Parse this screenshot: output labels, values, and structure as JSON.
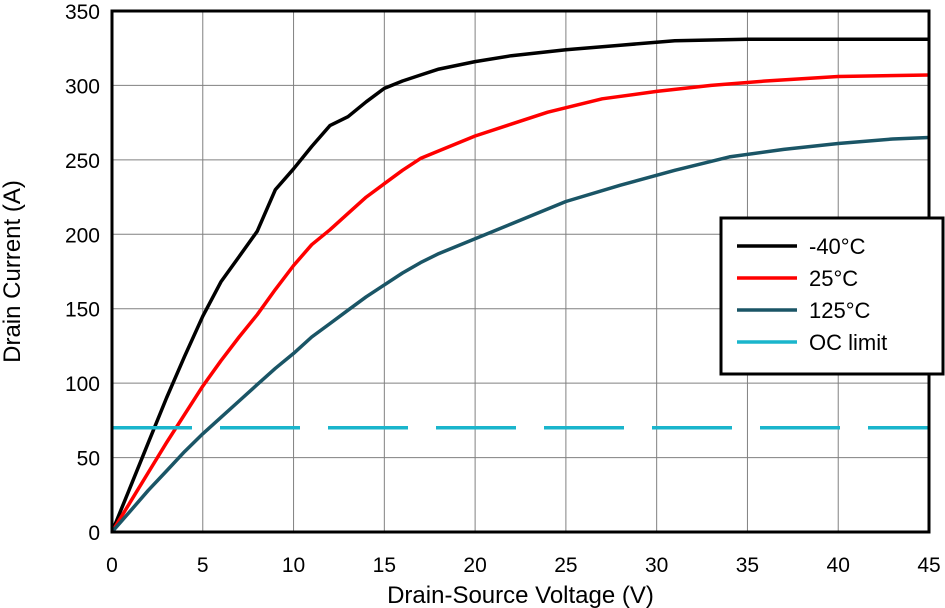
{
  "chart_data": {
    "type": "line",
    "title": "",
    "xlabel": "Drain-Source Voltage (V)",
    "ylabel": "Drain Current (A)",
    "xlim": [
      0,
      45
    ],
    "ylim": [
      0,
      350
    ],
    "xticks": [
      0,
      5,
      10,
      15,
      20,
      25,
      30,
      35,
      40,
      45
    ],
    "yticks": [
      0,
      50,
      100,
      150,
      200,
      250,
      300,
      350
    ],
    "grid": true,
    "legend_position": "right",
    "series": [
      {
        "name": "-40°C",
        "color": "#000000",
        "style": "solid",
        "points": [
          [
            0,
            0
          ],
          [
            1,
            30
          ],
          [
            2,
            60
          ],
          [
            3,
            90
          ],
          [
            4,
            118
          ],
          [
            5,
            145
          ],
          [
            6,
            168
          ],
          [
            7,
            185
          ],
          [
            8,
            202
          ],
          [
            9,
            230
          ],
          [
            10,
            244
          ],
          [
            11,
            259
          ],
          [
            12,
            273
          ],
          [
            13,
            279
          ],
          [
            14,
            289
          ],
          [
            15,
            298
          ],
          [
            16,
            303
          ],
          [
            17,
            307
          ],
          [
            18,
            311
          ],
          [
            20,
            316
          ],
          [
            22,
            320
          ],
          [
            25,
            324
          ],
          [
            28,
            327
          ],
          [
            31,
            330
          ],
          [
            35,
            331
          ],
          [
            40,
            331
          ],
          [
            45,
            331
          ]
        ]
      },
      {
        "name": "25°C",
        "color": "#ff0000",
        "style": "solid",
        "points": [
          [
            0,
            0
          ],
          [
            1,
            20
          ],
          [
            2,
            40
          ],
          [
            3,
            60
          ],
          [
            4,
            79
          ],
          [
            5,
            98
          ],
          [
            6,
            115
          ],
          [
            7,
            131
          ],
          [
            8,
            146
          ],
          [
            9,
            163
          ],
          [
            10,
            179
          ],
          [
            11,
            193
          ],
          [
            12,
            203
          ],
          [
            13,
            214
          ],
          [
            14,
            225
          ],
          [
            15,
            234
          ],
          [
            16,
            243
          ],
          [
            17,
            251
          ],
          [
            18,
            256
          ],
          [
            20,
            266
          ],
          [
            22,
            274
          ],
          [
            24,
            282
          ],
          [
            27,
            291
          ],
          [
            30,
            296
          ],
          [
            33,
            300
          ],
          [
            36,
            303
          ],
          [
            40,
            306
          ],
          [
            45,
            307
          ]
        ]
      },
      {
        "name": "125°C",
        "color": "#1a5566",
        "style": "solid",
        "points": [
          [
            0,
            0
          ],
          [
            1,
            14
          ],
          [
            2,
            28
          ],
          [
            3,
            41
          ],
          [
            4,
            54
          ],
          [
            5,
            66
          ],
          [
            6,
            77
          ],
          [
            7,
            88
          ],
          [
            8,
            99
          ],
          [
            9,
            110
          ],
          [
            10,
            120
          ],
          [
            11,
            131
          ],
          [
            12,
            140
          ],
          [
            13,
            149
          ],
          [
            14,
            158
          ],
          [
            15,
            166
          ],
          [
            16,
            174
          ],
          [
            17,
            181
          ],
          [
            18,
            187
          ],
          [
            20,
            197
          ],
          [
            22,
            207
          ],
          [
            25,
            222
          ],
          [
            28,
            233
          ],
          [
            31,
            243
          ],
          [
            34,
            252
          ],
          [
            37,
            257
          ],
          [
            40,
            261
          ],
          [
            43,
            264
          ],
          [
            45,
            265
          ]
        ]
      },
      {
        "name": "OC limit",
        "color": "#1ab5cc",
        "style": "dashed",
        "points": [
          [
            0,
            70
          ],
          [
            45,
            70
          ]
        ]
      }
    ]
  }
}
